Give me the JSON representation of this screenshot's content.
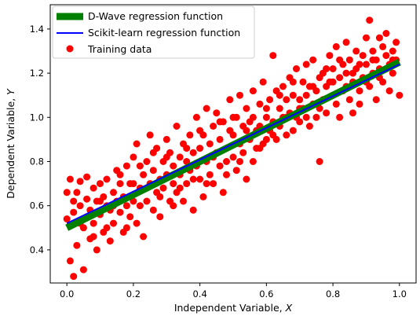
{
  "chart_data": {
    "type": "scatter",
    "xlabel_text": "Independent Variable, ",
    "xlabel_var": "X",
    "ylabel_text": "Dependent Variable, ",
    "ylabel_var": "Y",
    "xlim": [
      -0.05,
      1.05
    ],
    "ylim": [
      0.25,
      1.51
    ],
    "xticks": [
      0.0,
      0.2,
      0.4,
      0.6,
      0.8,
      1.0
    ],
    "xtick_labels": [
      "0.0",
      "0.2",
      "0.4",
      "0.6",
      "0.8",
      "1.0"
    ],
    "yticks": [
      0.4,
      0.6,
      0.8,
      1.0,
      1.2,
      1.4
    ],
    "ytick_labels": [
      "0.4",
      "0.6",
      "0.8",
      "1.0",
      "1.2",
      "1.4"
    ],
    "legend_position": "top-left",
    "legend": [
      {
        "label": "D-Wave regression function",
        "kind": "thick-line",
        "color": "#008000"
      },
      {
        "label": "Scikit-learn regression function",
        "kind": "line",
        "color": "#0000ff"
      },
      {
        "label": "Training data",
        "kind": "marker",
        "color": "#ff0000"
      }
    ],
    "lines": [
      {
        "name": "D-Wave regression function",
        "color": "#008000",
        "x": [
          0.0,
          1.0
        ],
        "y": [
          0.5,
          1.25
        ]
      },
      {
        "name": "Scikit-learn regression function",
        "color": "#0000ff",
        "x": [
          0.0,
          1.0
        ],
        "y": [
          0.52,
          1.24
        ]
      }
    ],
    "scatter": {
      "name": "Training data",
      "color": "#ff0000",
      "points": [
        [
          0.0,
          0.54
        ],
        [
          0.01,
          0.72
        ],
        [
          0.01,
          0.35
        ],
        [
          0.02,
          0.57
        ],
        [
          0.02,
          0.28
        ],
        [
          0.03,
          0.66
        ],
        [
          0.03,
          0.42
        ],
        [
          0.04,
          0.6
        ],
        [
          0.04,
          0.71
        ],
        [
          0.05,
          0.31
        ],
        [
          0.05,
          0.5
        ],
        [
          0.06,
          0.63
        ],
        [
          0.06,
          0.73
        ],
        [
          0.07,
          0.45
        ],
        [
          0.07,
          0.58
        ],
        [
          0.08,
          0.52
        ],
        [
          0.08,
          0.68
        ],
        [
          0.09,
          0.4
        ],
        [
          0.09,
          0.62
        ],
        [
          0.1,
          0.56
        ],
        [
          0.1,
          0.7
        ],
        [
          0.11,
          0.48
        ],
        [
          0.11,
          0.64
        ],
        [
          0.12,
          0.6
        ],
        [
          0.12,
          0.72
        ],
        [
          0.13,
          0.44
        ],
        [
          0.13,
          0.58
        ],
        [
          0.14,
          0.66
        ],
        [
          0.14,
          0.52
        ],
        [
          0.15,
          0.62
        ],
        [
          0.15,
          0.76
        ],
        [
          0.16,
          0.57
        ],
        [
          0.16,
          0.7
        ],
        [
          0.17,
          0.48
        ],
        [
          0.17,
          0.64
        ],
        [
          0.18,
          0.6
        ],
        [
          0.18,
          0.78
        ],
        [
          0.19,
          0.55
        ],
        [
          0.19,
          0.7
        ],
        [
          0.2,
          0.62
        ],
        [
          0.2,
          0.82
        ],
        [
          0.21,
          0.52
        ],
        [
          0.21,
          0.88
        ],
        [
          0.22,
          0.68
        ],
        [
          0.22,
          0.6
        ],
        [
          0.23,
          0.74
        ],
        [
          0.23,
          0.46
        ],
        [
          0.24,
          0.8
        ],
        [
          0.24,
          0.62
        ],
        [
          0.25,
          0.7
        ],
        [
          0.25,
          0.92
        ],
        [
          0.26,
          0.58
        ],
        [
          0.26,
          0.76
        ],
        [
          0.27,
          0.66
        ],
        [
          0.27,
          0.86
        ],
        [
          0.28,
          0.72
        ],
        [
          0.28,
          0.55
        ],
        [
          0.29,
          0.8
        ],
        [
          0.29,
          0.68
        ],
        [
          0.3,
          0.74
        ],
        [
          0.3,
          0.9
        ],
        [
          0.31,
          0.62
        ],
        [
          0.31,
          0.84
        ],
        [
          0.32,
          0.7
        ],
        [
          0.32,
          0.78
        ],
        [
          0.33,
          0.96
        ],
        [
          0.33,
          0.66
        ],
        [
          0.34,
          0.82
        ],
        [
          0.34,
          0.74
        ],
        [
          0.35,
          0.88
        ],
        [
          0.35,
          0.62
        ],
        [
          0.36,
          0.8
        ],
        [
          0.36,
          0.7
        ],
        [
          0.37,
          0.92
        ],
        [
          0.37,
          0.76
        ],
        [
          0.38,
          0.84
        ],
        [
          0.38,
          0.58
        ],
        [
          0.39,
          0.78
        ],
        [
          0.39,
          1.0
        ],
        [
          0.4,
          0.86
        ],
        [
          0.4,
          0.72
        ],
        [
          0.41,
          0.92
        ],
        [
          0.41,
          0.64
        ],
        [
          0.42,
          0.8
        ],
        [
          0.42,
          1.04
        ],
        [
          0.43,
          0.88
        ],
        [
          0.43,
          0.74
        ],
        [
          0.44,
          0.96
        ],
        [
          0.44,
          0.7
        ],
        [
          0.45,
          0.84
        ],
        [
          0.45,
          1.02
        ],
        [
          0.46,
          0.78
        ],
        [
          0.46,
          0.9
        ],
        [
          0.47,
          0.66
        ],
        [
          0.47,
          0.98
        ],
        [
          0.48,
          0.86
        ],
        [
          0.48,
          0.74
        ],
        [
          0.49,
          0.94
        ],
        [
          0.49,
          1.08
        ],
        [
          0.5,
          0.82
        ],
        [
          0.5,
          0.92
        ],
        [
          0.51,
          0.76
        ],
        [
          0.51,
          1.0
        ],
        [
          0.52,
          0.88
        ],
        [
          0.52,
          1.1
        ],
        [
          0.53,
          0.84
        ],
        [
          0.53,
          0.96
        ],
        [
          0.54,
          0.72
        ],
        [
          0.54,
          1.04
        ],
        [
          0.55,
          0.9
        ],
        [
          0.55,
          0.98
        ],
        [
          0.56,
          0.8
        ],
        [
          0.56,
          1.12
        ],
        [
          0.57,
          0.94
        ],
        [
          0.57,
          0.86
        ],
        [
          0.58,
          1.06
        ],
        [
          0.58,
          0.96
        ],
        [
          0.59,
          0.88
        ],
        [
          0.59,
          1.16
        ],
        [
          0.6,
          1.0
        ],
        [
          0.6,
          0.9
        ],
        [
          0.61,
          1.08
        ],
        [
          0.61,
          0.94
        ],
        [
          0.62,
          1.28
        ],
        [
          0.62,
          0.98
        ],
        [
          0.63,
          1.12
        ],
        [
          0.63,
          0.9
        ],
        [
          0.64,
          1.04
        ],
        [
          0.64,
          0.96
        ],
        [
          0.65,
          1.14
        ],
        [
          0.65,
          1.0
        ],
        [
          0.66,
          0.92
        ],
        [
          0.66,
          1.08
        ],
        [
          0.67,
          1.18
        ],
        [
          0.67,
          1.02
        ],
        [
          0.68,
          0.94
        ],
        [
          0.68,
          1.1
        ],
        [
          0.69,
          1.22
        ],
        [
          0.69,
          1.0
        ],
        [
          0.7,
          1.08
        ],
        [
          0.7,
          0.98
        ],
        [
          0.71,
          1.16
        ],
        [
          0.71,
          1.04
        ],
        [
          0.72,
          1.24
        ],
        [
          0.72,
          1.1
        ],
        [
          0.73,
          0.96
        ],
        [
          0.73,
          1.14
        ],
        [
          0.74,
          1.06
        ],
        [
          0.74,
          1.26
        ],
        [
          0.75,
          1.12
        ],
        [
          0.75,
          1.0
        ],
        [
          0.76,
          1.18
        ],
        [
          0.76,
          0.8
        ],
        [
          0.77,
          1.08
        ],
        [
          0.77,
          1.2
        ],
        [
          0.78,
          1.14
        ],
        [
          0.78,
          1.02
        ],
        [
          0.79,
          1.28
        ],
        [
          0.79,
          1.16
        ],
        [
          0.8,
          1.1
        ],
        [
          0.8,
          1.22
        ],
        [
          0.81,
          1.06
        ],
        [
          0.81,
          1.32
        ],
        [
          0.82,
          1.18
        ],
        [
          0.82,
          1.0
        ],
        [
          0.83,
          1.24
        ],
        [
          0.83,
          1.12
        ],
        [
          0.84,
          1.2
        ],
        [
          0.84,
          1.34
        ],
        [
          0.85,
          1.08
        ],
        [
          0.85,
          1.26
        ],
        [
          0.86,
          1.16
        ],
        [
          0.86,
          1.02
        ],
        [
          0.87,
          1.3
        ],
        [
          0.87,
          1.22
        ],
        [
          0.88,
          1.12
        ],
        [
          0.88,
          1.06
        ],
        [
          0.89,
          1.28
        ],
        [
          0.89,
          1.18
        ],
        [
          0.9,
          1.36
        ],
        [
          0.9,
          1.24
        ],
        [
          0.91,
          1.14
        ],
        [
          0.91,
          1.44
        ],
        [
          0.92,
          1.3
        ],
        [
          0.92,
          1.2
        ],
        [
          0.93,
          1.08
        ],
        [
          0.93,
          1.26
        ],
        [
          0.94,
          1.36
        ],
        [
          0.94,
          1.22
        ],
        [
          0.95,
          1.32
        ],
        [
          0.95,
          1.16
        ],
        [
          0.96,
          1.28
        ],
        [
          0.96,
          1.38
        ],
        [
          0.97,
          1.24
        ],
        [
          0.97,
          1.12
        ],
        [
          0.98,
          1.3
        ],
        [
          0.98,
          1.2
        ],
        [
          0.99,
          1.34
        ],
        [
          0.99,
          1.26
        ],
        [
          1.0,
          1.1
        ],
        [
          0.0,
          0.66
        ],
        [
          0.02,
          0.62
        ],
        [
          0.04,
          0.52
        ],
        [
          0.06,
          0.55
        ],
        [
          0.08,
          0.46
        ],
        [
          0.1,
          0.62
        ],
        [
          0.12,
          0.5
        ],
        [
          0.14,
          0.6
        ],
        [
          0.16,
          0.74
        ],
        [
          0.18,
          0.5
        ],
        [
          0.2,
          0.7
        ],
        [
          0.22,
          0.78
        ],
        [
          0.24,
          0.68
        ],
        [
          0.26,
          0.84
        ],
        [
          0.28,
          0.64
        ],
        [
          0.3,
          0.82
        ],
        [
          0.32,
          0.6
        ],
        [
          0.34,
          0.68
        ],
        [
          0.36,
          0.86
        ],
        [
          0.38,
          0.72
        ],
        [
          0.4,
          0.94
        ],
        [
          0.42,
          0.7
        ],
        [
          0.44,
          0.82
        ],
        [
          0.46,
          0.98
        ],
        [
          0.48,
          0.8
        ],
        [
          0.5,
          1.0
        ],
        [
          0.52,
          0.8
        ],
        [
          0.54,
          0.94
        ],
        [
          0.56,
          1.0
        ],
        [
          0.58,
          0.86
        ],
        [
          0.6,
          1.04
        ],
        [
          0.62,
          0.92
        ],
        [
          0.64,
          1.1
        ],
        [
          0.66,
          1.0
        ],
        [
          0.68,
          1.16
        ],
        [
          0.7,
          1.04
        ],
        [
          0.72,
          1.0
        ],
        [
          0.74,
          1.14
        ],
        [
          0.76,
          1.04
        ],
        [
          0.78,
          1.22
        ],
        [
          0.8,
          1.16
        ],
        [
          0.82,
          1.26
        ],
        [
          0.84,
          1.14
        ],
        [
          0.86,
          1.2
        ],
        [
          0.88,
          1.24
        ],
        [
          0.9,
          1.16
        ],
        [
          0.92,
          1.26
        ],
        [
          0.94,
          1.18
        ],
        [
          0.96,
          1.22
        ],
        [
          0.98,
          1.26
        ]
      ]
    }
  }
}
